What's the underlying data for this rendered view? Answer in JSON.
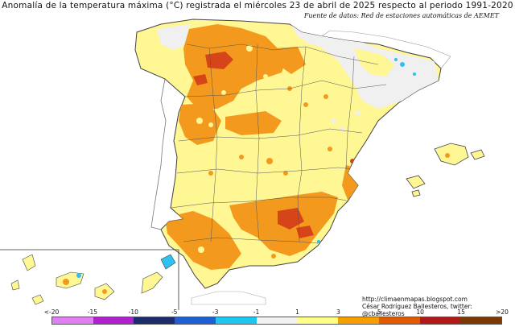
{
  "title": "Anomalía de la temperatura máxima (°C) registrada el miércoles 23 de abril de 2025 respecto al periodo 1991-2020",
  "source": "Fuente de datos: Red de estaciones automáticas de AEMET",
  "credit": {
    "url": "http://climaenmapas.blogspot.com",
    "author": "César Rodríguez Ballesteros, twitter: @cballesteros"
  },
  "legend": {
    "labels": [
      "<-20",
      "-15",
      "-10",
      "-5",
      "-3",
      "-1",
      "1",
      "3",
      "5",
      "10",
      "15",
      ">20"
    ],
    "colors": [
      "#e080f0",
      "#b020d0",
      "#1c2c6a",
      "#1f5fd6",
      "#21c6f0",
      "#f2f2f2",
      "#ffff88",
      "#f5a000",
      "#e15a00",
      "#b31818",
      "#7a3a08"
    ]
  },
  "map_colors": {
    "sea": "#ffffff",
    "neutral": "#f0f0f0",
    "light_warm": "#fff694",
    "warm": "#f39a1e",
    "hot": "#d6451a",
    "cold_spot": "#2fc1f0",
    "borders": "#555555"
  }
}
